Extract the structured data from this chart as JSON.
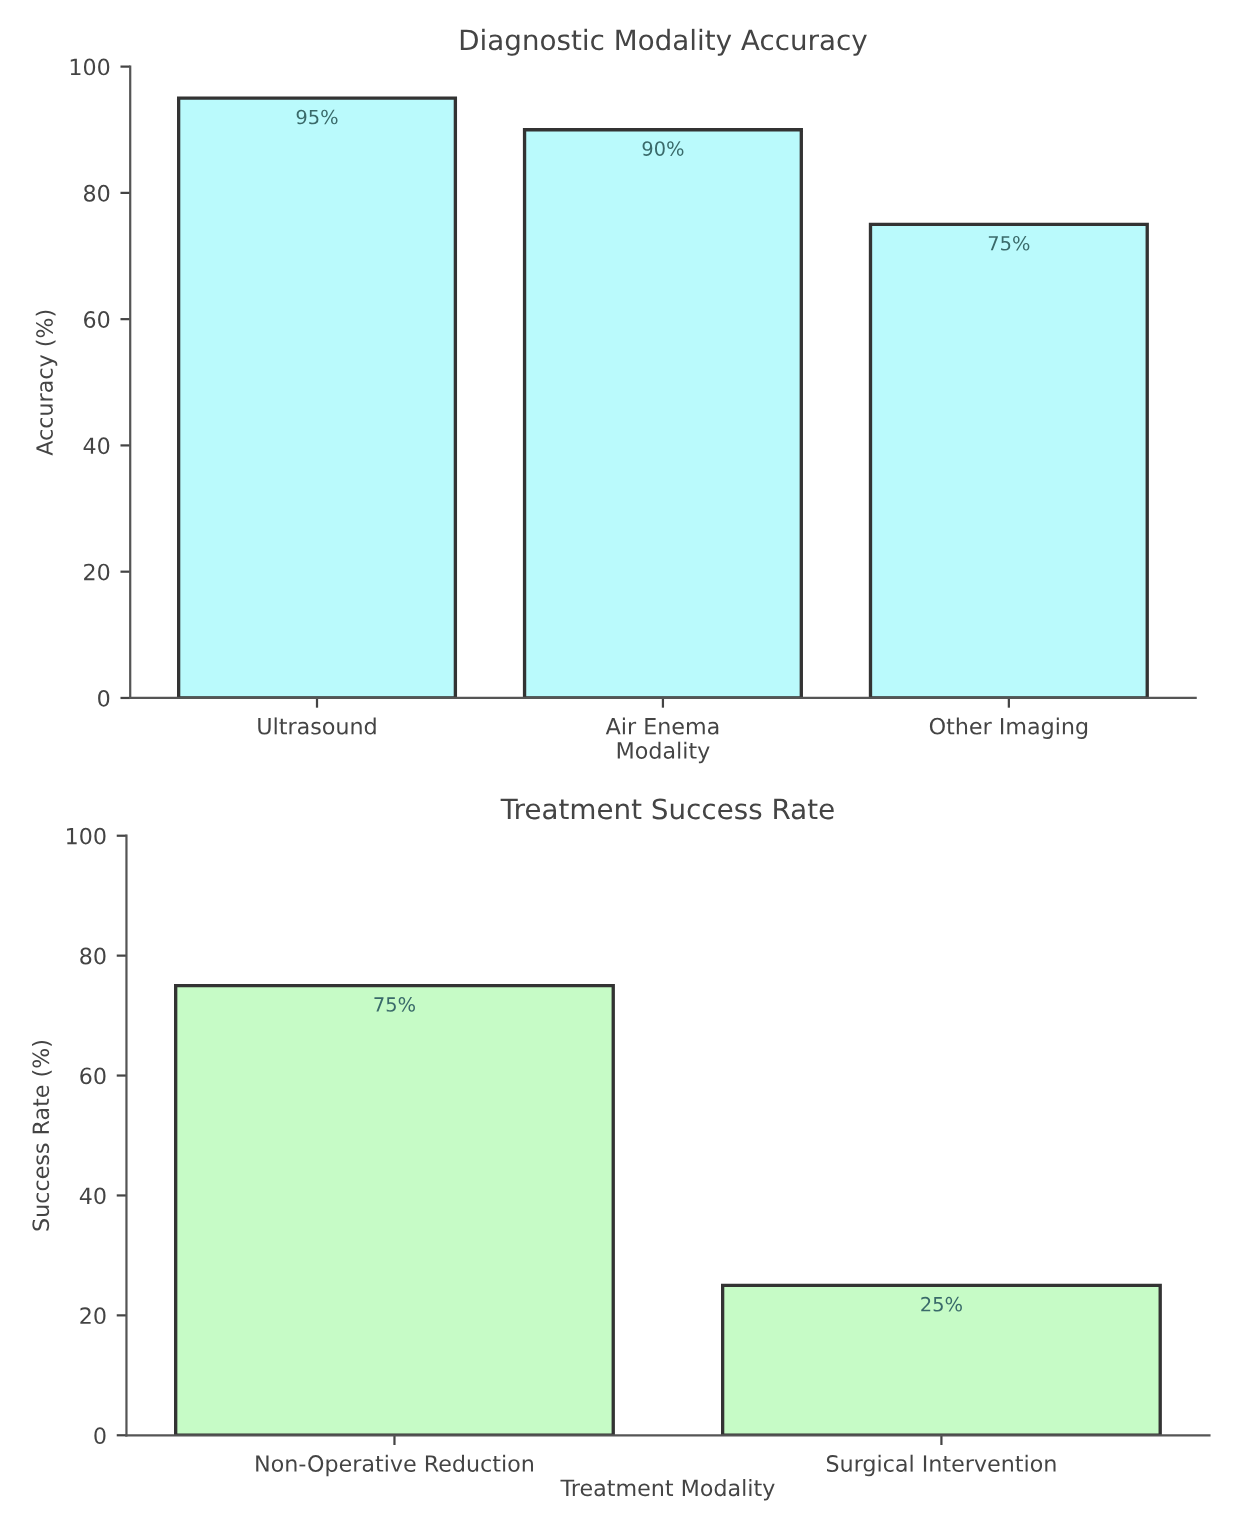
{
  "chart_data": [
    {
      "type": "bar",
      "title": "Diagnostic Modality Accuracy",
      "xlabel": "Modality",
      "ylabel": "Accuracy (%)",
      "categories": [
        "Ultrasound",
        "Air Enema",
        "Other Imaging"
      ],
      "values": [
        95,
        90,
        75
      ],
      "value_labels": [
        "95%",
        "90%",
        "75%"
      ],
      "color": "#bafafc",
      "ylim": [
        0,
        100
      ],
      "yticks": [
        0,
        20,
        40,
        60,
        80,
        100
      ],
      "grid": false
    },
    {
      "type": "bar",
      "title": "Treatment Success Rate",
      "xlabel": "Treatment Modality",
      "ylabel": "Success Rate (%)",
      "categories": [
        "Non-Operative Reduction",
        "Surgical Intervention"
      ],
      "values": [
        75,
        25
      ],
      "value_labels": [
        "75%",
        "25%"
      ],
      "color": "#c6fbc6",
      "ylim": [
        0,
        100
      ],
      "yticks": [
        0,
        20,
        40,
        60,
        80,
        100
      ],
      "grid": false
    }
  ]
}
